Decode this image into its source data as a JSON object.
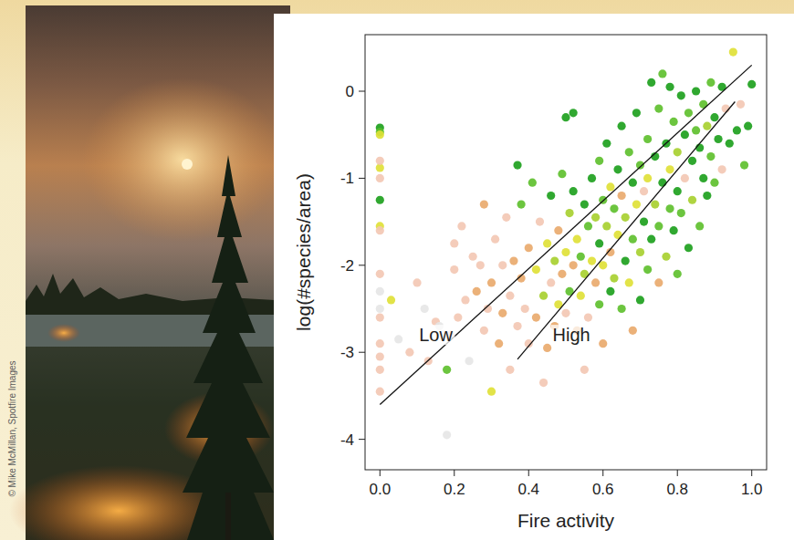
{
  "chart_data": {
    "type": "scatter",
    "xlabel": "Fire activity",
    "ylabel": "log(#species/area)",
    "source": "© Mike McMillan, Spotfire Images",
    "xlim": [
      -0.04,
      1.04
    ],
    "ylim": [
      -4.35,
      0.65
    ],
    "xticks": [
      {
        "value": 0,
        "label": "0.0"
      },
      {
        "value": 0.2,
        "label": "0.2"
      },
      {
        "value": 0.4,
        "label": "0.4"
      },
      {
        "value": 0.6,
        "label": "0.6"
      },
      {
        "value": 0.8,
        "label": "0.8"
      },
      {
        "value": 1,
        "label": "1.0"
      }
    ],
    "yticks": [
      -4,
      -3,
      -2,
      -1,
      0
    ],
    "grid": false,
    "series": [
      {
        "type": "scatter",
        "marker": "circle",
        "x": [
          0,
          0,
          0,
          0,
          0,
          0,
          0,
          0,
          0,
          0,
          0,
          0,
          0,
          0,
          0,
          0,
          0,
          0.03,
          0.05,
          0.08,
          0.1,
          0.12,
          0.13,
          0.15,
          0.16,
          0.18,
          0.18,
          0.19,
          0.2,
          0.2,
          0.21,
          0.22,
          0.23,
          0.24,
          0.25,
          0.26,
          0.27,
          0.28,
          0.28,
          0.29,
          0.3,
          0.3,
          0.31,
          0.32,
          0.33,
          0.33,
          0.34,
          0.35,
          0.35,
          0.36,
          0.37,
          0.37,
          0.38,
          0.38,
          0.39,
          0.4,
          0.4,
          0.41,
          0.42,
          0.42,
          0.43,
          0.44,
          0.44,
          0.45,
          0.45,
          0.46,
          0.46,
          0.47,
          0.47,
          0.48,
          0.48,
          0.49,
          0.49,
          0.5,
          0.5,
          0.5,
          0.51,
          0.51,
          0.52,
          0.52,
          0.52,
          0.53,
          0.53,
          0.54,
          0.54,
          0.55,
          0.55,
          0.55,
          0.56,
          0.56,
          0.57,
          0.57,
          0.58,
          0.58,
          0.59,
          0.59,
          0.59,
          0.6,
          0.6,
          0.6,
          0.61,
          0.61,
          0.62,
          0.62,
          0.62,
          0.63,
          0.63,
          0.64,
          0.64,
          0.65,
          0.65,
          0.65,
          0.66,
          0.66,
          0.67,
          0.67,
          0.68,
          0.68,
          0.68,
          0.69,
          0.69,
          0.7,
          0.7,
          0.7,
          0.71,
          0.71,
          0.72,
          0.72,
          0.72,
          0.73,
          0.73,
          0.74,
          0.74,
          0.75,
          0.75,
          0.75,
          0.76,
          0.76,
          0.77,
          0.77,
          0.78,
          0.78,
          0.78,
          0.79,
          0.79,
          0.8,
          0.8,
          0.8,
          0.81,
          0.81,
          0.82,
          0.82,
          0.83,
          0.83,
          0.84,
          0.84,
          0.85,
          0.85,
          0.86,
          0.86,
          0.87,
          0.87,
          0.88,
          0.88,
          0.89,
          0.89,
          0.9,
          0.9,
          0.91,
          0.92,
          0.92,
          0.93,
          0.94,
          0.95,
          0.96,
          0.97,
          0.98,
          0.99,
          1.0
        ],
        "values": [
          -0.42,
          -0.47,
          -0.5,
          -0.88,
          -1.25,
          -1.55,
          -1.6,
          -0.8,
          -1.0,
          -2.1,
          -2.3,
          -2.5,
          -2.6,
          -2.9,
          -3.2,
          -3.45,
          -3.05,
          -2.4,
          -2.85,
          -3.0,
          -2.2,
          -2.5,
          -3.1,
          -2.65,
          -2.7,
          -3.2,
          -3.95,
          -2.8,
          -2.05,
          -1.75,
          -2.6,
          -1.55,
          -2.4,
          -3.1,
          -1.9,
          -2.3,
          -2.0,
          -1.3,
          -2.75,
          -2.5,
          -3.45,
          -2.2,
          -1.7,
          -2.9,
          -2.0,
          -2.55,
          -1.45,
          -2.35,
          -3.2,
          -1.95,
          -2.7,
          -0.85,
          -2.15,
          -1.3,
          -2.5,
          -1.8,
          -2.9,
          -1.05,
          -2.05,
          -2.6,
          -1.5,
          -2.35,
          -3.35,
          -1.75,
          -2.95,
          -1.2,
          -2.2,
          -2.7,
          -1.95,
          -2.45,
          -1.6,
          -0.95,
          -2.1,
          -1.85,
          -2.55,
          -0.3,
          -1.4,
          -2.3,
          -2.0,
          -1.15,
          -0.25,
          -2.75,
          -1.7,
          -1.9,
          -2.35,
          -1.3,
          -2.1,
          -3.2,
          -1.55,
          -2.6,
          -1.0,
          -1.95,
          -2.2,
          -1.45,
          -0.8,
          -1.75,
          -2.45,
          -1.25,
          -2.0,
          -2.9,
          -1.55,
          -0.6,
          -2.3,
          -1.1,
          -1.85,
          -1.35,
          -2.15,
          -0.9,
          -1.65,
          -2.5,
          -1.2,
          -0.4,
          -1.95,
          -1.45,
          -0.7,
          -2.2,
          -1.05,
          -1.7,
          -2.75,
          -1.3,
          -0.25,
          -1.85,
          -0.85,
          -2.4,
          -1.5,
          -1.15,
          -0.55,
          -2.05,
          -1.0,
          -1.7,
          0.1,
          -1.3,
          -0.75,
          -2.2,
          -1.55,
          -0.2,
          -1.05,
          0.2,
          -1.9,
          -0.6,
          -1.35,
          -0.9,
          0.05,
          -1.6,
          -0.35,
          -1.15,
          -0.7,
          -2.1,
          -0.05,
          -1.4,
          -0.5,
          -1.0,
          -1.8,
          -0.25,
          -0.8,
          -1.25,
          -0.45,
          0.0,
          -1.55,
          -0.65,
          -1.0,
          -0.15,
          -0.4,
          -1.2,
          -0.75,
          0.1,
          -0.3,
          -1.05,
          -0.55,
          -0.9,
          0.05,
          -0.2,
          -0.6,
          0.45,
          -0.45,
          -0.15,
          -0.85,
          -0.4,
          0.08
        ],
        "colors": [
          "#1a9e1a",
          "#5cbf2a",
          "#dfe034",
          "#dfe034",
          "#1a9e1a",
          "#dfe034",
          "#f3c6b2",
          "#f3c6b2",
          "#f3c6b2",
          "#f3c6b2",
          "#e6e6e6",
          "#e6e6e6",
          "#f3c6b2",
          "#f3c6b2",
          "#f3c6b2",
          "#f3c6b2",
          "#f3c6b2",
          "#dfe034",
          "#e6e6e6",
          "#f3c6b2",
          "#f3c6b2",
          "#e6e6e6",
          "#f3c6b2",
          "#f3c6b2",
          "#e6e6e6",
          "#5cbf2a",
          "#e6e6e6",
          "#f3c6b2",
          "#f3c6b2",
          "#f3c6b2",
          "#f3c6b2",
          "#f3c6b2",
          "#f3c6b2",
          "#e6e6e6",
          "#f3c6b2",
          "#e9a86a",
          "#f3c6b2",
          "#e9a86a",
          "#f3c6b2",
          "#f3c6b2",
          "#dfe034",
          "#e9a86a",
          "#f3c6b2",
          "#e9a86a",
          "#f3c6b2",
          "#e9a86a",
          "#f3c6b2",
          "#f3c6b2",
          "#f3c6b2",
          "#e9a86a",
          "#f3c6b2",
          "#1a9e1a",
          "#e9a86a",
          "#5cbf2a",
          "#f3c6b2",
          "#e9a86a",
          "#f3c6b2",
          "#5cbf2a",
          "#dfe034",
          "#e9a86a",
          "#f3c6b2",
          "#a6cf2c",
          "#f3c6b2",
          "#dfe034",
          "#e9a86a",
          "#1a9e1a",
          "#f3c6b2",
          "#e9a86a",
          "#a6cf2c",
          "#dfe034",
          "#e9a86a",
          "#5cbf2a",
          "#e9a86a",
          "#dfe034",
          "#f3c6b2",
          "#1a9e1a",
          "#a6cf2c",
          "#5cbf2a",
          "#e9a86a",
          "#1a9e1a",
          "#1a9e1a",
          "#e9a86a",
          "#dfe034",
          "#5cbf2a",
          "#dfe034",
          "#1a9e1a",
          "#a6cf2c",
          "#f3c6b2",
          "#5cbf2a",
          "#f3c6b2",
          "#1a9e1a",
          "#dfe034",
          "#e9a86a",
          "#a6cf2c",
          "#5cbf2a",
          "#1a9e1a",
          "#5cbf2a",
          "#5cbf2a",
          "#dfe034",
          "#e9a86a",
          "#a6cf2c",
          "#1a9e1a",
          "#1a9e1a",
          "#dfe034",
          "#e9a86a",
          "#5cbf2a",
          "#a6cf2c",
          "#1a9e1a",
          "#dfe034",
          "#5cbf2a",
          "#e9a86a",
          "#1a9e1a",
          "#1a9e1a",
          "#a6cf2c",
          "#5cbf2a",
          "#dfe034",
          "#1a9e1a",
          "#5cbf2a",
          "#e9a86a",
          "#dfe034",
          "#1a9e1a",
          "#a6cf2c",
          "#5cbf2a",
          "#1a9e1a",
          "#1a9e1a",
          "#f3c6b2",
          "#5cbf2a",
          "#5cbf2a",
          "#dfe034",
          "#1a9e1a",
          "#1a9e1a",
          "#a6cf2c",
          "#1a9e1a",
          "#e9a86a",
          "#5cbf2a",
          "#5cbf2a",
          "#1a9e1a",
          "#5cbf2a",
          "#a6cf2c",
          "#1a9e1a",
          "#5cbf2a",
          "#dfe034",
          "#1a9e1a",
          "#1a9e1a",
          "#5cbf2a",
          "#1a9e1a",
          "#a6cf2c",
          "#5cbf2a",
          "#1a9e1a",
          "#5cbf2a",
          "#1a9e1a",
          "#f3c6b2",
          "#1a9e1a",
          "#5cbf2a",
          "#1a9e1a",
          "#a6cf2c",
          "#5cbf2a",
          "#1a9e1a",
          "#5cbf2a",
          "#1a9e1a",
          "#1a9e1a",
          "#5cbf2a",
          "#a6cf2c",
          "#1a9e1a",
          "#5cbf2a",
          "#5cbf2a",
          "#1a9e1a",
          "#5cbf2a",
          "#1a9e1a",
          "#f3c6b2",
          "#1a9e1a",
          "#f3c6b2",
          "#1a9e1a",
          "#dfe034",
          "#1a9e1a",
          "#f3c6b2",
          "#5cbf2a",
          "#1a9e1a",
          "#1a9e1a"
        ]
      },
      {
        "type": "line",
        "name": "Low",
        "line_style": "solid",
        "color": "#111111",
        "x": [
          0,
          1.0
        ],
        "values": [
          -3.6,
          0.3
        ]
      },
      {
        "type": "line",
        "name": "High",
        "line_style": "solid",
        "color": "#111111",
        "x": [
          0.37,
          0.955
        ],
        "values": [
          -3.08,
          -0.12
        ]
      }
    ]
  }
}
